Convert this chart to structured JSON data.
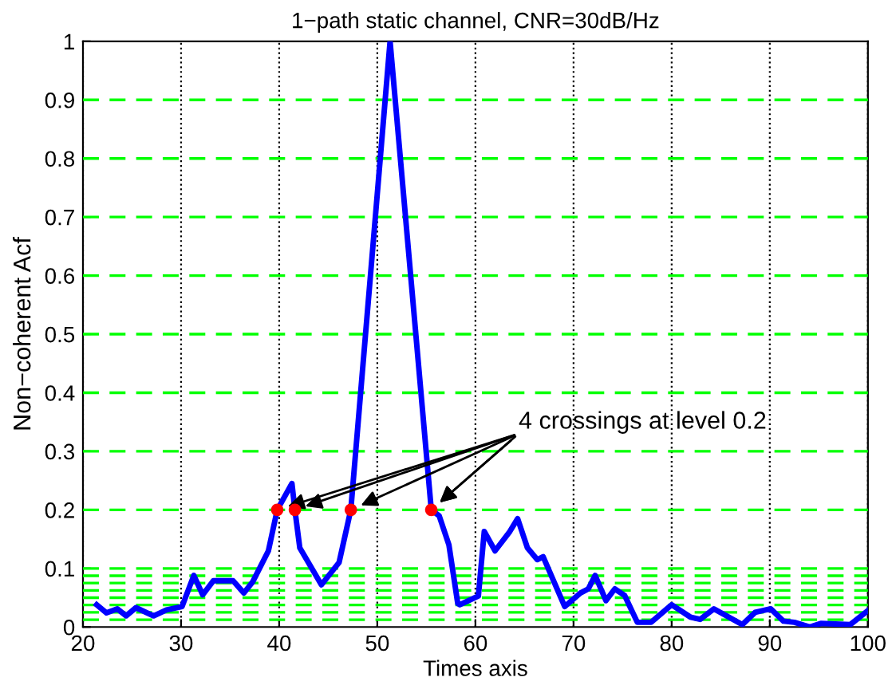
{
  "chart_data": {
    "type": "line",
    "title": "1−path static channel, CNR=30dB/Hz",
    "xlabel": "Times axis",
    "ylabel": "Non−coherent Acf",
    "xlim": [
      20,
      100
    ],
    "ylim": [
      0,
      1
    ],
    "xticks": [
      20,
      30,
      40,
      50,
      60,
      70,
      80,
      90,
      100
    ],
    "yticks": [
      0,
      0.1,
      0.2,
      0.3,
      0.4,
      0.5,
      0.6,
      0.7,
      0.8,
      0.9,
      1
    ],
    "grid": "x",
    "series": [
      {
        "color": "#0000ff",
        "line_style": "solid",
        "marker": "none",
        "x": [
          21.4,
          22.4,
          23.5,
          24.4,
          25.4,
          27.2,
          28.5,
          30.1,
          31.3,
          32.2,
          33.3,
          35.3,
          36.4,
          37.3,
          38.9,
          39.8,
          41.3,
          41.6,
          42.1,
          44.3,
          46.1,
          47.3,
          51.3,
          55.5,
          56.3,
          57.3,
          58.2,
          58.4,
          60.3,
          60.9,
          62,
          63.5,
          64.3,
          65.3,
          66.3,
          66.9,
          69.1,
          70.7,
          71.5,
          72.2,
          73.3,
          74.2,
          75.2,
          76.5,
          77.9,
          80,
          81.9,
          82.9,
          84.3,
          87.2,
          88.5,
          90.1,
          91.4,
          92.5,
          94.1,
          95.2,
          98.2,
          100
        ],
        "values": [
          0.038,
          0.024,
          0.031,
          0.019,
          0.033,
          0.019,
          0.029,
          0.035,
          0.088,
          0.055,
          0.079,
          0.079,
          0.058,
          0.077,
          0.13,
          0.2,
          0.245,
          0.2,
          0.135,
          0.072,
          0.11,
          0.2,
          1.0,
          0.2,
          0.19,
          0.14,
          0.04,
          0.038,
          0.053,
          0.163,
          0.13,
          0.163,
          0.185,
          0.135,
          0.115,
          0.12,
          0.035,
          0.058,
          0.065,
          0.088,
          0.045,
          0.065,
          0.054,
          0.008,
          0.008,
          0.038,
          0.017,
          0.013,
          0.031,
          0.004,
          0.025,
          0.031,
          0.01,
          0.008,
          0.0,
          0.006,
          0.004,
          0.028
        ]
      },
      {
        "type": "scatter",
        "color": "#ff0000",
        "marker": "circle",
        "x": [
          39.8,
          41.6,
          47.3,
          55.5
        ],
        "values": [
          0.2,
          0.2,
          0.2,
          0.2
        ]
      }
    ],
    "ref_lines": [
      {
        "axis": "y",
        "value": 0.0125,
        "color": "#00ff00",
        "line_style": "dashed"
      },
      {
        "axis": "y",
        "value": 0.025,
        "color": "#00ff00",
        "line_style": "dashed"
      },
      {
        "axis": "y",
        "value": 0.0375,
        "color": "#00ff00",
        "line_style": "dashed"
      },
      {
        "axis": "y",
        "value": 0.05,
        "color": "#00ff00",
        "line_style": "dashed"
      },
      {
        "axis": "y",
        "value": 0.0625,
        "color": "#00ff00",
        "line_style": "dashed"
      },
      {
        "axis": "y",
        "value": 0.075,
        "color": "#00ff00",
        "line_style": "dashed"
      },
      {
        "axis": "y",
        "value": 0.0875,
        "color": "#00ff00",
        "line_style": "dashed"
      },
      {
        "axis": "y",
        "value": 0.1,
        "color": "#00ff00",
        "line_style": "dashed"
      },
      {
        "axis": "y",
        "value": 0.2,
        "color": "#00ff00",
        "line_style": "dashed"
      },
      {
        "axis": "y",
        "value": 0.3,
        "color": "#00ff00",
        "line_style": "dashed"
      },
      {
        "axis": "y",
        "value": 0.4,
        "color": "#00ff00",
        "line_style": "dashed"
      },
      {
        "axis": "y",
        "value": 0.5,
        "color": "#00ff00",
        "line_style": "dashed"
      },
      {
        "axis": "y",
        "value": 0.6,
        "color": "#00ff00",
        "line_style": "dashed"
      },
      {
        "axis": "y",
        "value": 0.7,
        "color": "#00ff00",
        "line_style": "dashed"
      },
      {
        "axis": "y",
        "value": 0.8,
        "color": "#00ff00",
        "line_style": "dashed"
      },
      {
        "axis": "y",
        "value": 0.9,
        "color": "#00ff00",
        "line_style": "dashed"
      }
    ],
    "annotations": [
      {
        "text": "4 crossings at level 0.2",
        "x": 55.5,
        "y": 0.2
      }
    ]
  }
}
